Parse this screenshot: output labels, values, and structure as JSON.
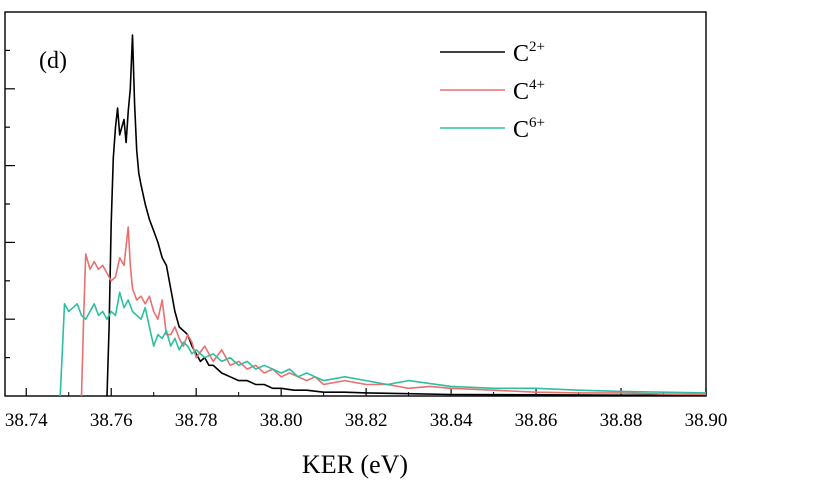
{
  "chart_data": {
    "type": "line",
    "panel_label": "(d)",
    "title": "",
    "xlabel": "KER (eV)",
    "ylabel": "",
    "xlim": [
      38.735,
      38.9
    ],
    "ylim": [
      0,
      1.0
    ],
    "x_ticks": [
      38.74,
      38.76,
      38.78,
      38.8,
      38.82,
      38.84,
      38.86,
      38.88,
      38.9
    ],
    "x_tick_labels": [
      "38.74",
      "38.76",
      "38.78",
      "38.80",
      "38.82",
      "38.84",
      "38.86",
      "38.88",
      "38.90"
    ],
    "y_major_ticks": [
      0.2,
      0.4,
      0.6,
      0.8
    ],
    "y_minor_ticks": [
      0.1,
      0.3,
      0.5,
      0.7,
      0.9
    ],
    "legend_position": "top-right",
    "series": [
      {
        "name": "C2+",
        "legend_base": "C",
        "legend_sup": "2+",
        "color": "#000000",
        "x": [
          38.759,
          38.7595,
          38.76,
          38.7605,
          38.761,
          38.7615,
          38.762,
          38.7625,
          38.763,
          38.7635,
          38.764,
          38.7645,
          38.765,
          38.7655,
          38.766,
          38.7665,
          38.767,
          38.768,
          38.769,
          38.77,
          38.771,
          38.772,
          38.773,
          38.774,
          38.775,
          38.776,
          38.777,
          38.778,
          38.779,
          38.78,
          38.781,
          38.782,
          38.783,
          38.784,
          38.785,
          38.786,
          38.788,
          38.79,
          38.792,
          38.794,
          38.796,
          38.798,
          38.8,
          38.803,
          38.806,
          38.81,
          38.815,
          38.82,
          38.83,
          38.84,
          38.86,
          38.88,
          38.9
        ],
        "y": [
          0.0,
          0.18,
          0.45,
          0.62,
          0.7,
          0.75,
          0.68,
          0.7,
          0.72,
          0.66,
          0.74,
          0.8,
          0.94,
          0.76,
          0.64,
          0.58,
          0.55,
          0.5,
          0.46,
          0.43,
          0.4,
          0.36,
          0.34,
          0.28,
          0.22,
          0.18,
          0.17,
          0.16,
          0.13,
          0.11,
          0.09,
          0.1,
          0.08,
          0.08,
          0.07,
          0.06,
          0.05,
          0.04,
          0.04,
          0.03,
          0.03,
          0.02,
          0.02,
          0.015,
          0.015,
          0.01,
          0.01,
          0.008,
          0.006,
          0.004,
          0.003,
          0.002,
          0.002
        ]
      },
      {
        "name": "C4+",
        "legend_base": "C",
        "legend_sup": "4+",
        "color": "#e8706e",
        "x": [
          38.753,
          38.7535,
          38.754,
          38.755,
          38.756,
          38.757,
          38.758,
          38.759,
          38.76,
          38.761,
          38.762,
          38.763,
          38.764,
          38.7645,
          38.765,
          38.766,
          38.767,
          38.768,
          38.769,
          38.77,
          38.771,
          38.772,
          38.773,
          38.774,
          38.775,
          38.776,
          38.777,
          38.778,
          38.779,
          38.78,
          38.782,
          38.784,
          38.786,
          38.788,
          38.79,
          38.792,
          38.794,
          38.796,
          38.798,
          38.8,
          38.802,
          38.804,
          38.806,
          38.808,
          38.81,
          38.815,
          38.82,
          38.825,
          38.83,
          38.835,
          38.84,
          38.85,
          38.86,
          38.87,
          38.88,
          38.89,
          38.9
        ],
        "y": [
          0.0,
          0.2,
          0.37,
          0.33,
          0.35,
          0.33,
          0.34,
          0.32,
          0.3,
          0.31,
          0.36,
          0.34,
          0.44,
          0.34,
          0.28,
          0.25,
          0.26,
          0.24,
          0.26,
          0.22,
          0.2,
          0.25,
          0.16,
          0.16,
          0.18,
          0.15,
          0.13,
          0.16,
          0.14,
          0.1,
          0.13,
          0.09,
          0.12,
          0.08,
          0.09,
          0.07,
          0.08,
          0.06,
          0.07,
          0.05,
          0.06,
          0.05,
          0.04,
          0.05,
          0.03,
          0.04,
          0.03,
          0.03,
          0.02,
          0.025,
          0.02,
          0.015,
          0.01,
          0.008,
          0.008,
          0.005,
          0.004
        ]
      },
      {
        "name": "C6+",
        "legend_base": "C",
        "legend_sup": "6+",
        "color": "#2ebf9f",
        "x": [
          38.748,
          38.7485,
          38.749,
          38.75,
          38.751,
          38.752,
          38.753,
          38.754,
          38.755,
          38.756,
          38.757,
          38.758,
          38.759,
          38.76,
          38.761,
          38.762,
          38.763,
          38.764,
          38.765,
          38.766,
          38.767,
          38.768,
          38.769,
          38.77,
          38.771,
          38.772,
          38.773,
          38.774,
          38.775,
          38.776,
          38.777,
          38.778,
          38.779,
          38.78,
          38.782,
          38.784,
          38.786,
          38.788,
          38.79,
          38.792,
          38.794,
          38.796,
          38.798,
          38.8,
          38.802,
          38.804,
          38.806,
          38.808,
          38.81,
          38.815,
          38.82,
          38.825,
          38.83,
          38.84,
          38.85,
          38.86,
          38.87,
          38.88,
          38.89,
          38.9
        ],
        "y": [
          0.0,
          0.12,
          0.24,
          0.22,
          0.23,
          0.24,
          0.21,
          0.2,
          0.22,
          0.24,
          0.21,
          0.22,
          0.2,
          0.22,
          0.21,
          0.27,
          0.23,
          0.25,
          0.22,
          0.21,
          0.2,
          0.23,
          0.18,
          0.13,
          0.16,
          0.15,
          0.17,
          0.13,
          0.15,
          0.12,
          0.14,
          0.13,
          0.11,
          0.12,
          0.1,
          0.11,
          0.09,
          0.1,
          0.08,
          0.09,
          0.07,
          0.08,
          0.07,
          0.06,
          0.07,
          0.05,
          0.06,
          0.05,
          0.04,
          0.05,
          0.04,
          0.03,
          0.04,
          0.025,
          0.02,
          0.02,
          0.015,
          0.012,
          0.01,
          0.008
        ]
      }
    ]
  }
}
